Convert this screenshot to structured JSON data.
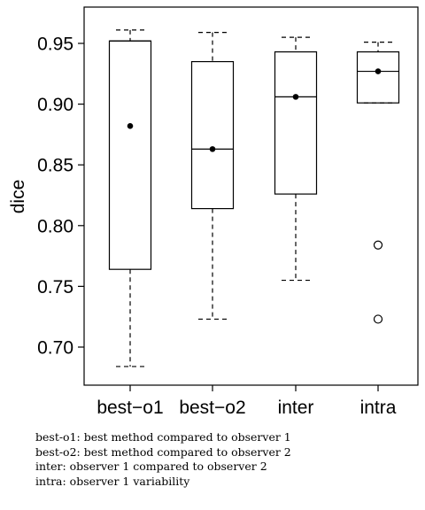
{
  "chart_data": {
    "type": "boxplot",
    "title": "",
    "xlabel": "",
    "ylabel": "dice",
    "ylim": [
      0.675,
      0.97
    ],
    "yticks": [
      0.7,
      0.75,
      0.8,
      0.85,
      0.9,
      0.95
    ],
    "ytick_labels": [
      "0.70",
      "0.75",
      "0.80",
      "0.85",
      "0.90",
      "0.95"
    ],
    "grid": false,
    "categories": [
      "best−o1",
      "best−o2",
      "inter",
      "intra"
    ],
    "boxes": [
      {
        "category": "best−o1",
        "whisker_low": 0.684,
        "q1": 0.764,
        "median": 0.952,
        "q3": 0.952,
        "whisker_high": 0.961,
        "mean": 0.882,
        "outliers": []
      },
      {
        "category": "best−o2",
        "whisker_low": 0.723,
        "q1": 0.814,
        "median": 0.863,
        "q3": 0.935,
        "whisker_high": 0.959,
        "mean": 0.863,
        "outliers": []
      },
      {
        "category": "inter",
        "whisker_low": 0.755,
        "q1": 0.826,
        "median": 0.906,
        "q3": 0.943,
        "whisker_high": 0.955,
        "mean": 0.906,
        "outliers": []
      },
      {
        "category": "intra",
        "whisker_low": 0.901,
        "q1": 0.901,
        "median": 0.927,
        "q3": 0.943,
        "whisker_high": 0.951,
        "mean": 0.927,
        "outliers": [
          0.784,
          0.723
        ]
      }
    ]
  },
  "caption": [
    "best-o1: best method compared to observer 1",
    "best-o2: best method compared to observer 2",
    "inter: observer 1 compared to observer 2",
    "intra: observer 1 variability"
  ]
}
